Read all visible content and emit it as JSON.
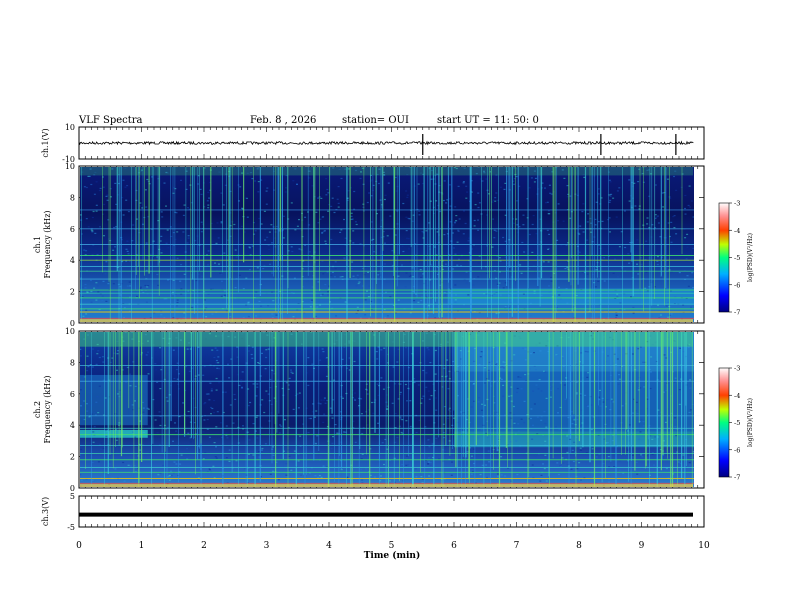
{
  "header": {
    "title": "VLF Spectra",
    "date": "Feb. 8 , 2026",
    "station": "station= OUI",
    "start": "start  UT =   11: 50: 0"
  },
  "chart_data": [
    {
      "type": "line",
      "name": "ch1-waveform",
      "ylabel": "ch.1(V)",
      "ylim": [
        -10,
        10
      ],
      "yticks": [
        "10",
        "-10"
      ],
      "baseline": 0,
      "spikes_min": [
        5.5,
        8.35,
        9.55
      ]
    },
    {
      "type": "heatmap",
      "name": "ch1-spectrogram",
      "ylabel": "ch.1\nFrequency (kHz)",
      "ylim": [
        0,
        10
      ],
      "yticks": [
        "10",
        "8",
        "6",
        "4",
        "2",
        "0"
      ],
      "colorbar": {
        "label": "log(PSD)(V²/Hz)",
        "range": [
          -7,
          -3
        ],
        "ticks": [
          "-3",
          "-4",
          "-5",
          "-6",
          "-7"
        ]
      },
      "event_min": 5.9
    },
    {
      "type": "heatmap",
      "name": "ch2-spectrogram",
      "ylabel": "ch.2\nFrequency (kHz)",
      "ylim": [
        0,
        10
      ],
      "yticks": [
        "10",
        "8",
        "6",
        "4",
        "2",
        "0"
      ],
      "colorbar": {
        "label": "log(PSD)(V²/Hz)",
        "range": [
          -7,
          -3
        ],
        "ticks": [
          "-3",
          "-4",
          "-5",
          "-6",
          "-7"
        ]
      },
      "event_min": 6.0
    },
    {
      "type": "line",
      "name": "ch3-waveform",
      "ylabel": "ch.3(V)",
      "ylim": [
        -5,
        5
      ],
      "yticks": [
        "5",
        "-5"
      ],
      "baseline": -1
    }
  ],
  "xaxis": {
    "label": "Time (min)",
    "range": [
      0,
      10
    ],
    "ticks": [
      "0",
      "1",
      "2",
      "3",
      "4",
      "5",
      "6",
      "7",
      "8",
      "9",
      "10"
    ]
  }
}
